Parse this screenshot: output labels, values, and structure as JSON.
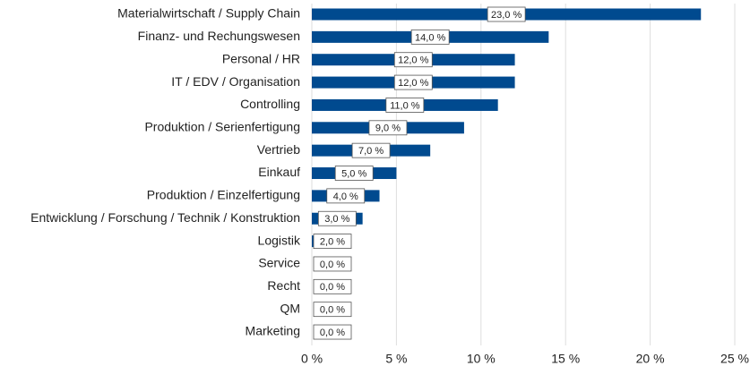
{
  "chart_data": {
    "type": "barh",
    "categories": [
      "Materialwirtschaft / Supply Chain",
      "Finanz- und Rechungswesen",
      "Personal / HR",
      "IT / EDV / Organisation",
      "Controlling",
      "Produktion / Serienfertigung",
      "Vertrieb",
      "Einkauf",
      "Produktion / Einzelfertigung",
      "Entwicklung / Forschung / Technik / Konstruktion",
      "Logistik",
      "Service",
      "Recht",
      "QM",
      "Marketing"
    ],
    "values": [
      23,
      14,
      12,
      12,
      11,
      9,
      7,
      5,
      4,
      3,
      2,
      0,
      0,
      0,
      0
    ],
    "value_labels": [
      "23,0 %",
      "14,0 %",
      "12,0 %",
      "12,0 %",
      "11,0 %",
      "9,0 %",
      "7,0 %",
      "5,0 %",
      "4,0 %",
      "3,0 %",
      "2,0 %",
      "0,0 %",
      "0,0 %",
      "0,0 %",
      "0,0 %"
    ],
    "color": "#004a8f",
    "xlim": [
      0,
      25
    ],
    "xticks": [
      {
        "value": 0,
        "label": "0 %"
      },
      {
        "value": 5,
        "label": "5 %"
      },
      {
        "value": 10,
        "label": "10 %"
      },
      {
        "value": 15,
        "label": "15 %"
      },
      {
        "value": 20,
        "label": "20 %"
      },
      {
        "value": 25,
        "label": "25 %"
      }
    ],
    "grid": true
  }
}
